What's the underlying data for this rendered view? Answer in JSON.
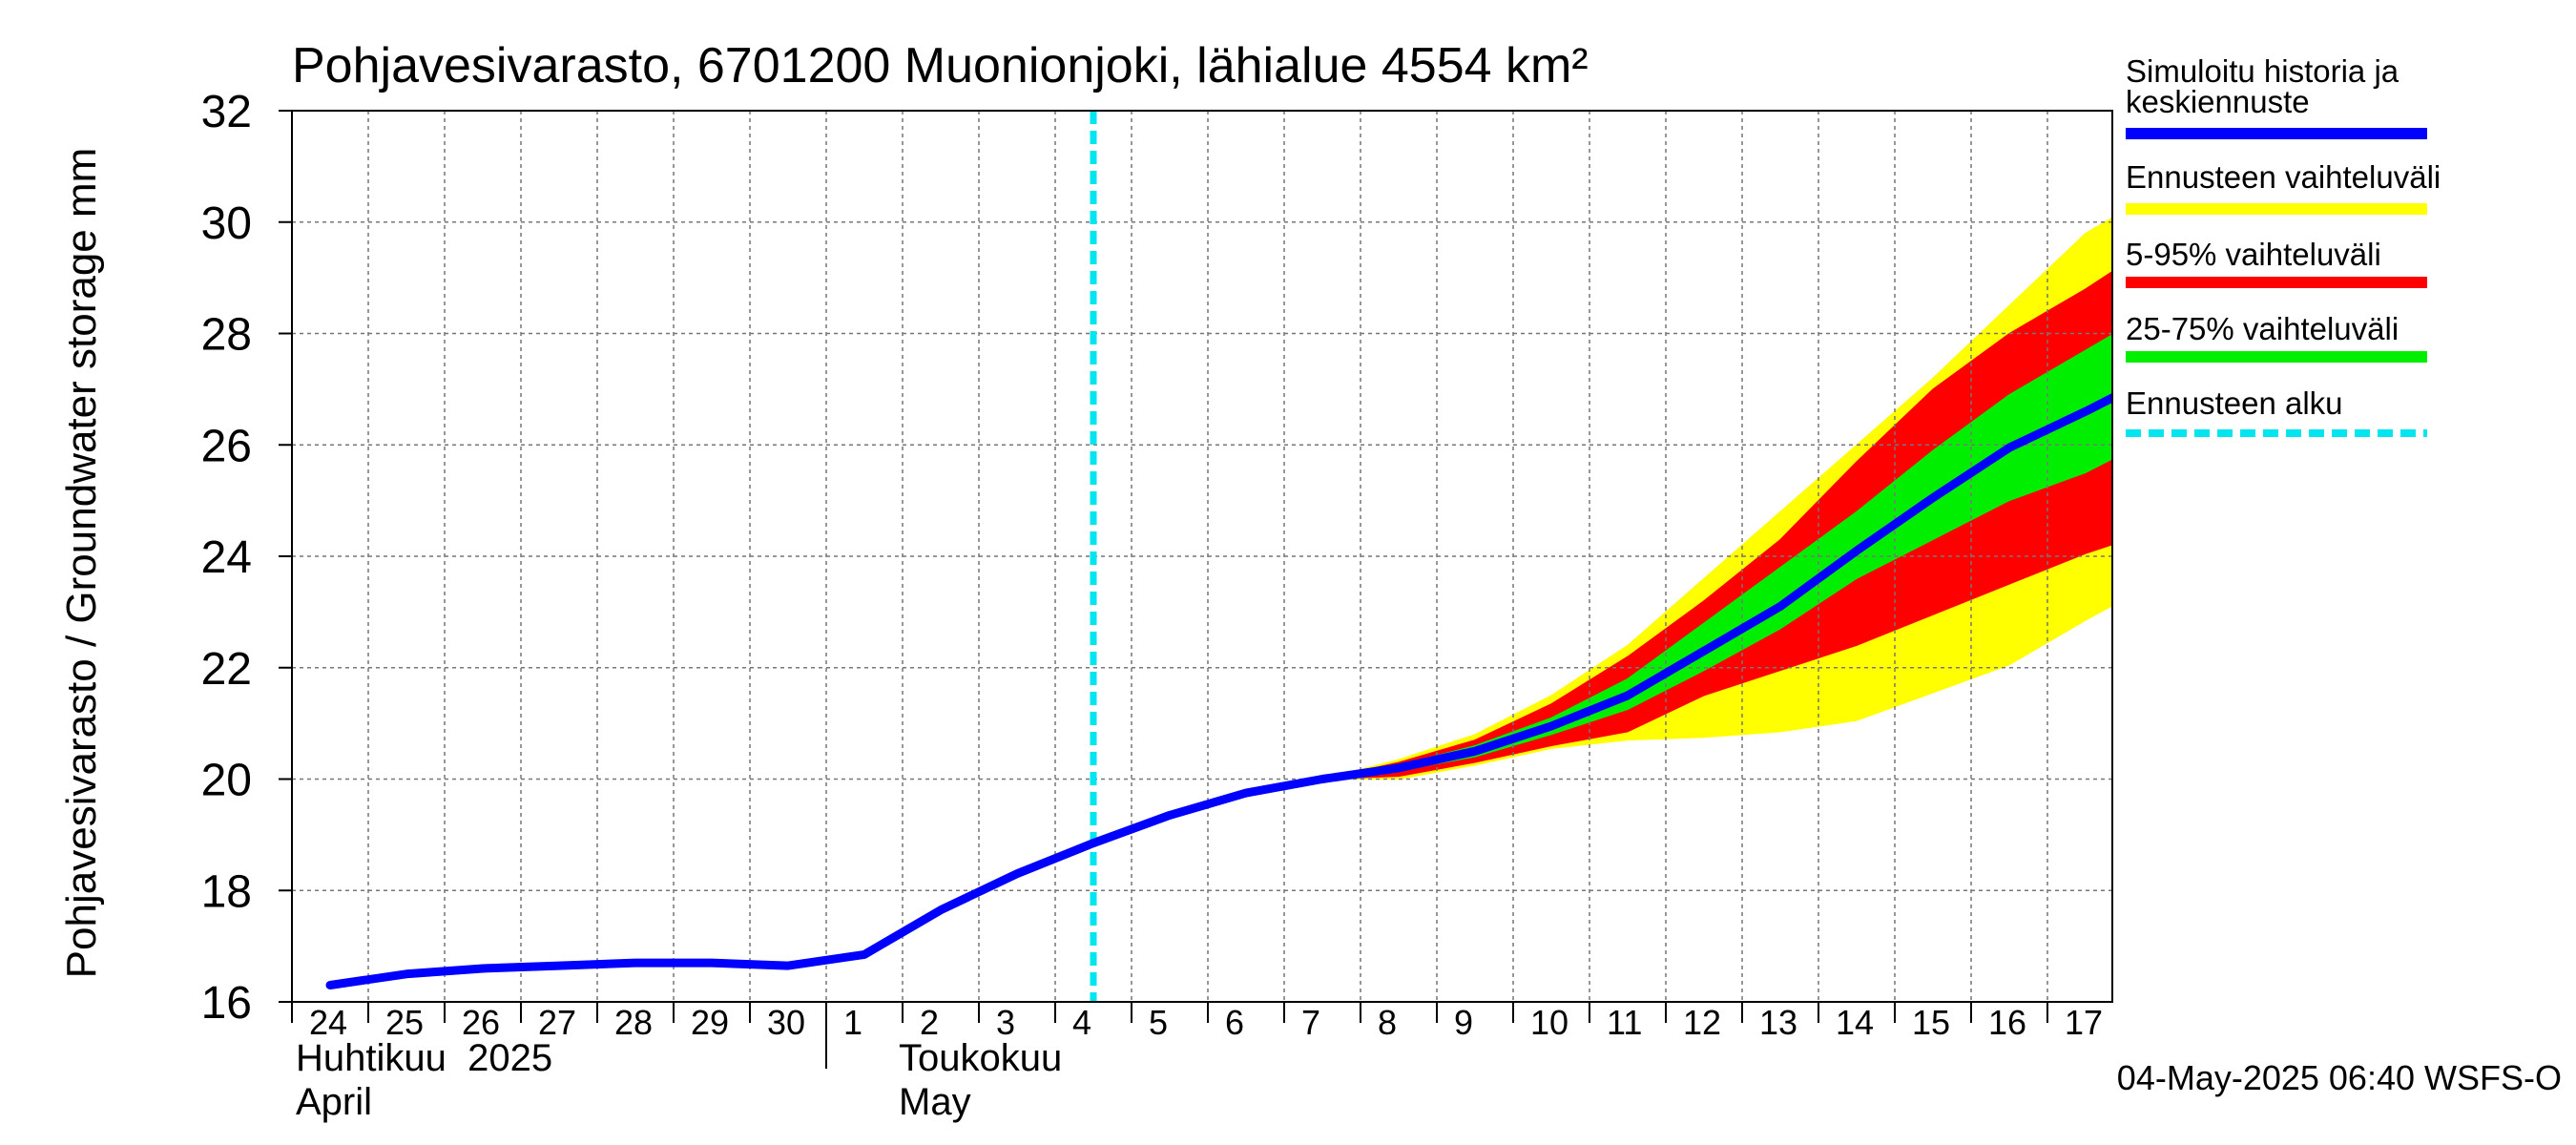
{
  "chart_data": {
    "type": "area",
    "title": "Pohjavesivarasto, 6701200 Muonionjoki, lähialue 4554 km²",
    "ylabel": "Pohjavesivarasto / Groundwater storage   mm",
    "ylim": [
      16,
      32
    ],
    "yticks": [
      16,
      18,
      20,
      22,
      24,
      26,
      28,
      30,
      32
    ],
    "x_start": "2025-04-24",
    "x_end": "2025-05-17",
    "x_ticks": [
      "24",
      "25",
      "26",
      "27",
      "28",
      "29",
      "30",
      "1",
      "2",
      "3",
      "4",
      "5",
      "6",
      "7",
      "8",
      "9",
      "10",
      "11",
      "12",
      "13",
      "14",
      "15",
      "16",
      "17"
    ],
    "month_labels": [
      {
        "line1": "Huhtikuu  2025",
        "line2": "April"
      },
      {
        "line1": "Toukokuu",
        "line2": "May"
      }
    ],
    "forecast_start": "2025-05-04",
    "grid": true,
    "legend_position": "right",
    "series": [
      {
        "name": "Simuloitu historia ja keskiennuste",
        "color": "#0000ff",
        "x": [
          "2025-04-24",
          "2025-04-25",
          "2025-04-26",
          "2025-04-27",
          "2025-04-28",
          "2025-04-29",
          "2025-04-30",
          "2025-05-01",
          "2025-05-02",
          "2025-05-03",
          "2025-05-04",
          "2025-05-05",
          "2025-05-06",
          "2025-05-07",
          "2025-05-08",
          "2025-05-09",
          "2025-05-10",
          "2025-05-11",
          "2025-05-12",
          "2025-05-13",
          "2025-05-14",
          "2025-05-15",
          "2025-05-16",
          "2025-05-17",
          "2025-05-18"
        ],
        "y": [
          16.3,
          16.5,
          16.6,
          16.65,
          16.7,
          16.7,
          16.65,
          16.85,
          17.65,
          18.3,
          18.85,
          19.35,
          19.75,
          20.0,
          20.2,
          20.5,
          20.95,
          21.5,
          22.3,
          23.1,
          24.1,
          25.05,
          25.95,
          26.6,
          27.3
        ]
      },
      {
        "name": "Ennusteen vaihteluväli",
        "color": "#ffff00",
        "x": [
          "2025-05-06",
          "2025-05-07",
          "2025-05-08",
          "2025-05-09",
          "2025-05-10",
          "2025-05-11",
          "2025-05-12",
          "2025-05-13",
          "2025-05-14",
          "2025-05-15",
          "2025-05-16",
          "2025-05-17",
          "2025-05-18"
        ],
        "low": [
          19.75,
          20.0,
          20.0,
          20.25,
          20.55,
          20.7,
          20.75,
          20.85,
          21.05,
          21.55,
          22.05,
          22.85,
          23.6
        ],
        "high": [
          19.75,
          20.0,
          20.35,
          20.8,
          21.5,
          22.4,
          23.6,
          24.8,
          26.0,
          27.2,
          28.5,
          29.8,
          30.6
        ]
      },
      {
        "name": "5-95% vaihteluväli",
        "color": "#ff0000",
        "x": [
          "2025-05-06",
          "2025-05-07",
          "2025-05-08",
          "2025-05-09",
          "2025-05-10",
          "2025-05-11",
          "2025-05-12",
          "2025-05-13",
          "2025-05-14",
          "2025-05-15",
          "2025-05-16",
          "2025-05-17",
          "2025-05-18"
        ],
        "low": [
          19.75,
          20.0,
          20.05,
          20.3,
          20.6,
          20.85,
          21.5,
          21.95,
          22.4,
          22.95,
          23.5,
          24.05,
          24.5
        ],
        "high": [
          19.75,
          20.0,
          20.3,
          20.7,
          21.35,
          22.2,
          23.2,
          24.3,
          25.7,
          27.0,
          28.0,
          28.8,
          29.7
        ]
      },
      {
        "name": "25-75% vaihteluväli",
        "color": "#00ee00",
        "x": [
          "2025-05-06",
          "2025-05-07",
          "2025-05-08",
          "2025-05-09",
          "2025-05-10",
          "2025-05-11",
          "2025-05-12",
          "2025-05-13",
          "2025-05-14",
          "2025-05-15",
          "2025-05-16",
          "2025-05-17",
          "2025-05-18"
        ],
        "low": [
          19.75,
          20.0,
          20.15,
          20.4,
          20.8,
          21.25,
          21.95,
          22.7,
          23.6,
          24.3,
          25.0,
          25.5,
          26.2
        ],
        "high": [
          19.75,
          20.0,
          20.25,
          20.6,
          21.1,
          21.8,
          22.8,
          23.8,
          24.8,
          25.9,
          26.9,
          27.7,
          28.5
        ]
      }
    ],
    "legend": [
      {
        "label": "Simuloitu historia ja keskiennuste",
        "color": "#0000ff",
        "style": "solid"
      },
      {
        "label": "Ennusteen vaihteluväli",
        "color": "#ffff00",
        "style": "solid"
      },
      {
        "label": "5-95% vaihteluväli",
        "color": "#ff0000",
        "style": "solid"
      },
      {
        "label": "25-75% vaihteluväli",
        "color": "#00ee00",
        "style": "solid"
      },
      {
        "label": "Ennusteen alku",
        "color": "#00e5f0",
        "style": "dashed"
      }
    ],
    "footer": "04-May-2025 06:40 WSFS-O"
  }
}
